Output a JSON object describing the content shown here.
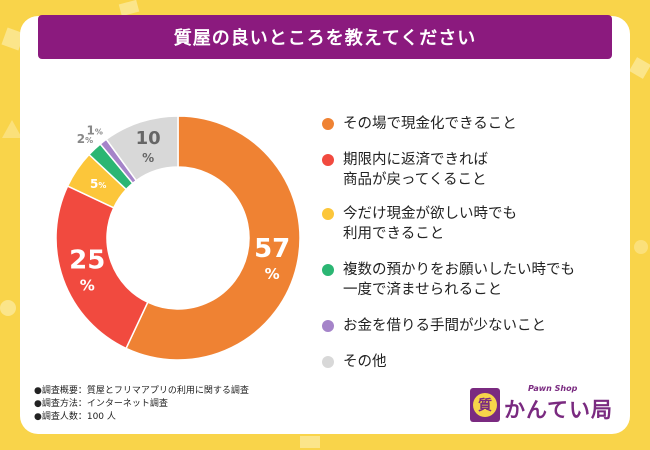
{
  "title": "質屋の良いところを教えてください",
  "chart_data": {
    "type": "pie",
    "title": "質屋の良いところを教えてください",
    "categories": [
      "その場で現金化できること",
      "期限内に返済できれば\n商品が戻ってくること",
      "今だけ現金が欲しい時でも\n利用できること",
      "複数の預かりをお願いしたい時でも\n一度で済ませられること",
      "お金を借りる手間が少ないこと",
      "その他"
    ],
    "values": [
      57,
      25,
      5,
      2,
      1,
      10
    ],
    "unit": "%",
    "colors": [
      "#ef8233",
      "#f14a3f",
      "#fcc63a",
      "#2bb673",
      "#a584c9",
      "#d8d8d8"
    ],
    "legend_position": "right"
  },
  "notes": [
    "●調査概要：質屋とフリマアプリの利用に関する調査",
    "●調査方法：インターネット調査",
    "●調査人数：100 人"
  ],
  "logo": {
    "icon_text": "質",
    "sub_text": "Pawn  Shop",
    "main_text": "かんてい局"
  }
}
